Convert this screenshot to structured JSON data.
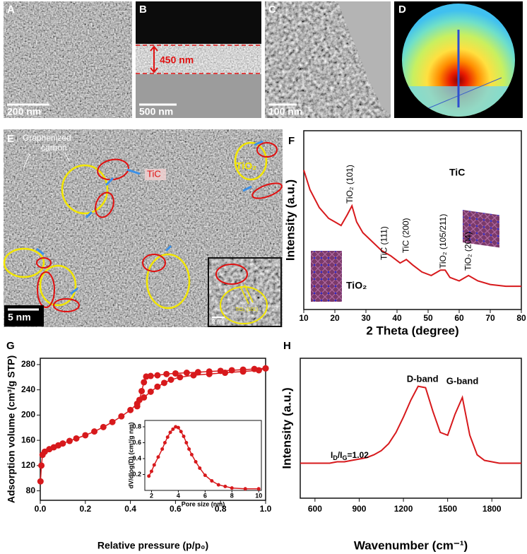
{
  "panels": {
    "A": {
      "label": "A",
      "scale_bar": "200 nm"
    },
    "B": {
      "label": "B",
      "scale_bar": "500 nm",
      "thickness": "450 nm"
    },
    "C": {
      "label": "C",
      "scale_bar": "100 nm"
    },
    "D": {
      "label": "D"
    },
    "E": {
      "label": "E",
      "scale_bar": "5 nm",
      "annotations": [
        "Graphenized",
        "carbon"
      ],
      "tic": "TiC",
      "tio2": "TiO₂",
      "inset_scale_bar": "2 nm",
      "inset_plane": "TiO₂ (101)"
    }
  },
  "chart_data": [
    {
      "type": "line",
      "panel": "F",
      "ylabel": "Intensity (a.u.)",
      "xlabel": "2 Theta (degree)",
      "xlim": [
        10,
        80
      ],
      "xticks": [
        10,
        20,
        30,
        40,
        50,
        60,
        70,
        80
      ],
      "ylim": [
        0,
        100
      ],
      "series": [
        {
          "color": "#d7191c",
          "x": [
            10,
            12,
            15,
            18,
            20,
            22,
            24,
            25.5,
            27,
            29,
            32,
            35,
            38,
            41,
            43,
            45,
            48,
            51,
            54,
            55.5,
            57,
            60,
            63,
            66,
            70,
            75,
            80
          ],
          "values": [
            78,
            67,
            57,
            51,
            49,
            47,
            53,
            58,
            49,
            43,
            38,
            33,
            30,
            26,
            28,
            25,
            21,
            19,
            22,
            22,
            18,
            16,
            19,
            16,
            14,
            13,
            13
          ]
        }
      ],
      "annotations": [
        "TiO₂ (101)",
        "TiC (111)",
        "TiC (200)",
        "TiO₂ (105/211)",
        "TiO₂ (204)"
      ],
      "structure_labels": [
        "TiC",
        "TiO₂"
      ]
    },
    {
      "type": "line",
      "panel": "G",
      "ylabel": "Adsorption volume (cm³/g STP)",
      "xlabel": "Relative pressure (p/p₀)",
      "xlim": [
        0,
        1
      ],
      "xticks": [
        {
          "value": 0,
          "label": "0.0"
        },
        0.2,
        0.4,
        0.6,
        0.8,
        {
          "value": 1,
          "label": "1.0"
        }
      ],
      "ylim": [
        65,
        290
      ],
      "yticks": [
        80,
        120,
        160,
        200,
        240,
        280
      ],
      "markers": true,
      "series": [
        {
          "color": "#d7191c",
          "x": [
            0.001,
            0.005,
            0.01,
            0.02,
            0.04,
            0.06,
            0.08,
            0.1,
            0.13,
            0.16,
            0.2,
            0.24,
            0.28,
            0.32,
            0.36,
            0.4,
            0.43,
            0.46,
            0.49,
            0.52,
            0.55,
            0.58,
            0.62,
            0.68,
            0.75,
            0.82,
            0.9,
            0.97,
            1.0
          ],
          "values": [
            95,
            120,
            137,
            142,
            146,
            149,
            152,
            155,
            159,
            163,
            168,
            174,
            181,
            189,
            198,
            208,
            218,
            228,
            237,
            245,
            251,
            256,
            260,
            263,
            265,
            267,
            269,
            271,
            274
          ]
        },
        {
          "color": "#d7191c",
          "x": [
            1.0,
            0.95,
            0.9,
            0.85,
            0.8,
            0.75,
            0.7,
            0.65,
            0.6,
            0.56,
            0.52,
            0.49,
            0.47,
            0.46,
            0.45,
            0.44,
            0.43
          ],
          "values": [
            274,
            273,
            272,
            271,
            270,
            269,
            268,
            267,
            266,
            265,
            263,
            262,
            261,
            252,
            238,
            224,
            214
          ]
        }
      ]
    },
    {
      "type": "line",
      "ylabel": "dV/dlog(D) (cm³/g nm)",
      "xlabel": "Pore size (nm)",
      "xlim": [
        1.5,
        10.2
      ],
      "xticks": [
        2,
        4,
        6,
        8,
        10
      ],
      "ylim": [
        0,
        0.88
      ],
      "yticks": [
        0.2,
        0.4,
        0.6,
        0.8
      ],
      "markers": true,
      "series": [
        {
          "color": "#d7191c",
          "x": [
            1.8,
            2,
            2.2,
            2.5,
            2.8,
            3,
            3.2,
            3.4,
            3.6,
            3.8,
            4,
            4.2,
            4.4,
            4.6,
            4.8,
            5,
            5.3,
            5.6,
            6,
            6.5,
            7,
            7.5,
            8,
            9,
            10
          ],
          "values": [
            0.18,
            0.24,
            0.32,
            0.42,
            0.52,
            0.6,
            0.67,
            0.73,
            0.77,
            0.8,
            0.79,
            0.74,
            0.68,
            0.6,
            0.52,
            0.45,
            0.36,
            0.28,
            0.19,
            0.12,
            0.07,
            0.05,
            0.03,
            0.02,
            0.02
          ]
        }
      ]
    },
    {
      "type": "line",
      "panel": "H",
      "ylabel": "Intensity (a.u.)",
      "xlabel": "Wavenumber (cm⁻¹)",
      "xlim": [
        500,
        2000
      ],
      "xticks": [
        600,
        900,
        1200,
        1500,
        1800
      ],
      "ylim": [
        0,
        100
      ],
      "series": [
        {
          "color": "#d7191c",
          "x": [
            500,
            550,
            600,
            650,
            700,
            750,
            800,
            850,
            900,
            950,
            1000,
            1050,
            1100,
            1150,
            1200,
            1250,
            1300,
            1350,
            1400,
            1450,
            1500,
            1550,
            1600,
            1650,
            1700,
            1750,
            1800,
            1850,
            1900,
            1950,
            2000
          ],
          "values": [
            25,
            25,
            25,
            25,
            25,
            26,
            26,
            27,
            28,
            29,
            31,
            34,
            39,
            47,
            58,
            70,
            80,
            79,
            62,
            47,
            45,
            60,
            72,
            45,
            31,
            27,
            26,
            25,
            25,
            25,
            25
          ]
        }
      ],
      "annotations": [
        "D-band",
        "G-band"
      ],
      "ratio": [
        "I",
        "D",
        "/I",
        "G",
        "=1.02"
      ]
    }
  ]
}
